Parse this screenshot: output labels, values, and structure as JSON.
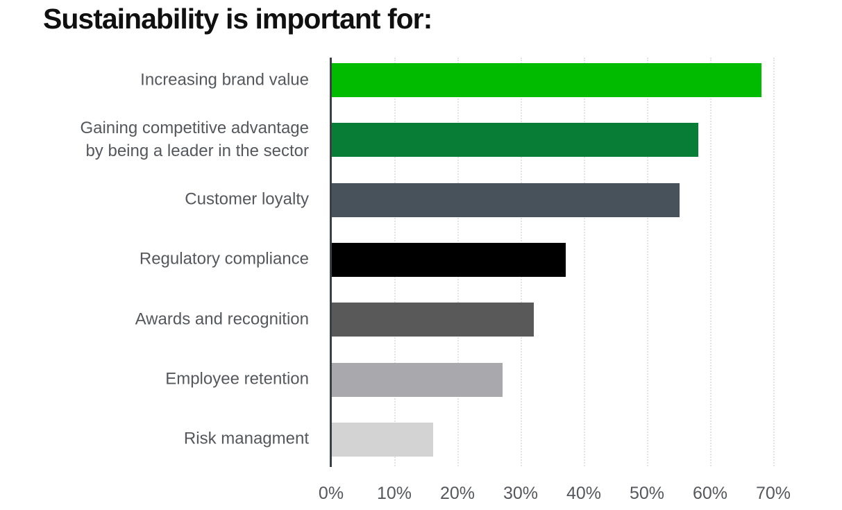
{
  "page": {
    "background": "#ffffff"
  },
  "chart_data": {
    "type": "bar",
    "orientation": "horizontal",
    "title": "Sustainability is important for:",
    "categories": [
      "Increasing brand value",
      "Gaining competitive advantage\nby being a leader in the sector",
      "Customer loyalty",
      "Regulatory compliance",
      "Awards and recognition",
      "Employee retention",
      "Risk managment"
    ],
    "values": [
      68,
      58,
      55,
      37,
      32,
      27,
      16
    ],
    "value_unit": "%",
    "bar_colors": [
      "#00BB00",
      "#087D35",
      "#47525A",
      "#000000",
      "#595959",
      "#A9A9AD",
      "#D3D3D3"
    ],
    "xlabel": "",
    "ylabel": "",
    "xlim": [
      0,
      70
    ],
    "x_ticks": [
      "0%",
      "10%",
      "20%",
      "30%",
      "40%",
      "50%",
      "60%",
      "70%"
    ],
    "grid": "vertical-dotted",
    "legend": "none",
    "colors": {
      "title": "#101010",
      "labels": "#54585C",
      "axis_line": "#3B4046",
      "gridline": "#E2E2E2"
    }
  }
}
